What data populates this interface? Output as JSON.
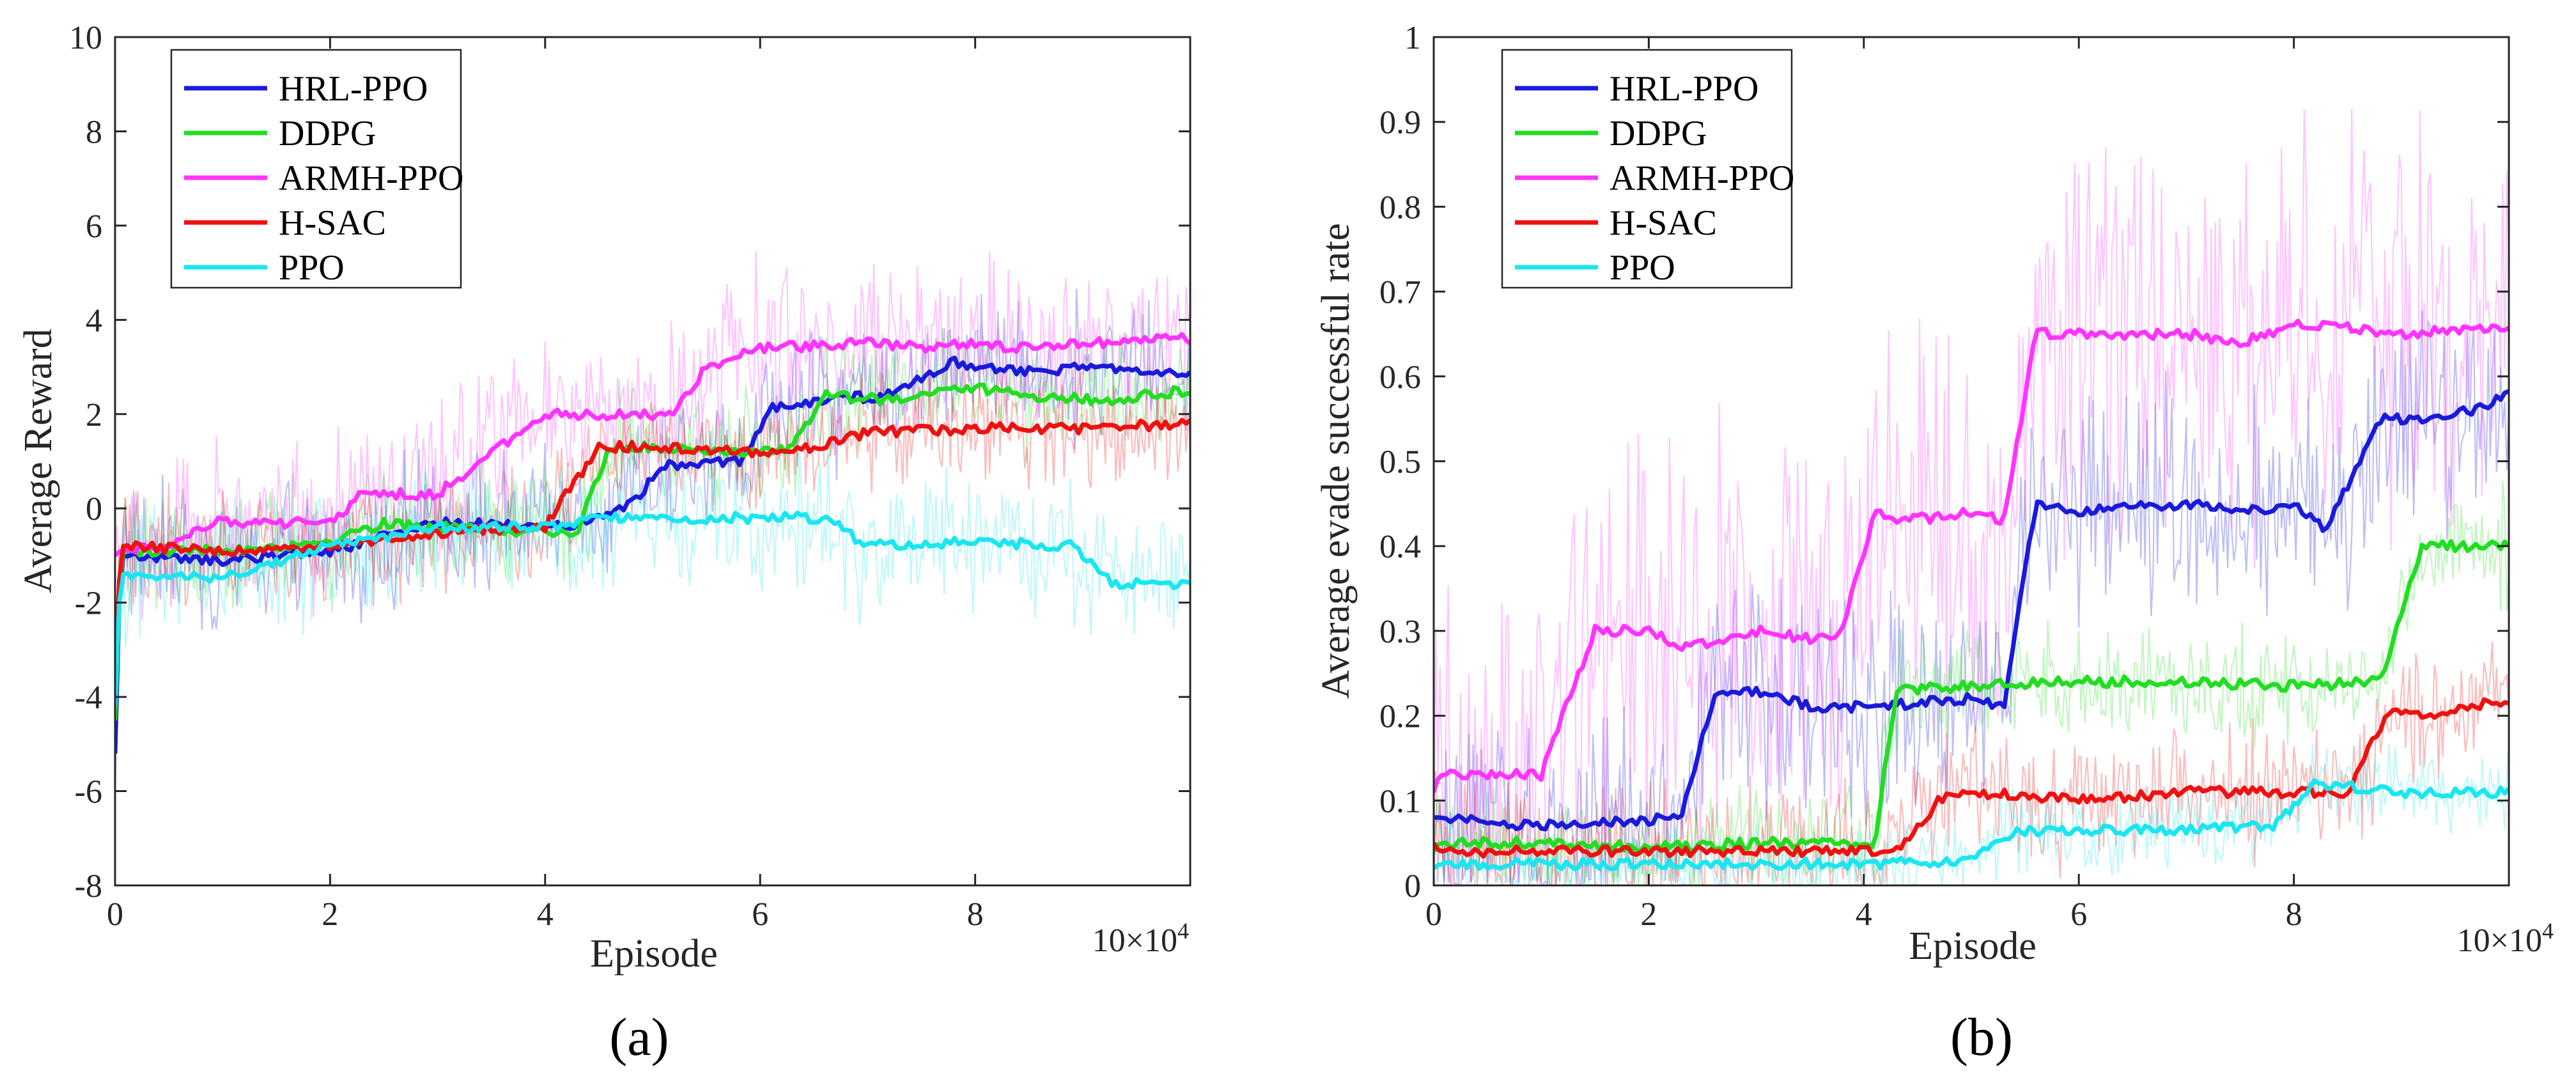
{
  "chart_data": [
    {
      "type": "line",
      "panel_label": "(a)",
      "xlabel": "Episode",
      "ylabel": "Average  Reward",
      "x_multiplier": "10×10",
      "x_multiplier_exp": "4",
      "xlim": [
        0,
        10
      ],
      "ylim": [
        -8,
        10
      ],
      "xticks": [
        "0",
        "2",
        "4",
        "6",
        "8"
      ],
      "yticks": [
        "-8",
        "-6",
        "-4",
        "-2",
        "0",
        "2",
        "4",
        "6",
        "8",
        "10"
      ],
      "legend_position": "top-left",
      "series": [
        {
          "name": "HRL-PPO",
          "color": "#1a1adc",
          "noise": 1.8,
          "x": [
            0,
            0.05,
            1,
            2,
            3,
            4,
            4.3,
            4.8,
            5.1,
            5.8,
            6.1,
            6.6,
            7.2,
            7.8,
            8.5,
            9.2,
            10
          ],
          "y": [
            -5.2,
            -1.0,
            -1.1,
            -0.9,
            -0.3,
            -0.4,
            -0.3,
            0.1,
            0.9,
            1.0,
            2.1,
            2.3,
            2.4,
            3.1,
            2.9,
            3.0,
            2.9
          ]
        },
        {
          "name": "DDPG",
          "color": "#22dd22",
          "noise": 1.6,
          "x": [
            0,
            0.05,
            1,
            2,
            2.5,
            3,
            4,
            4.3,
            4.6,
            5.0,
            6.0,
            6.3,
            6.6,
            7.2,
            7.8,
            8.5,
            9.2,
            10
          ],
          "y": [
            -4.5,
            -0.9,
            -0.9,
            -0.7,
            -0.3,
            -0.4,
            -0.5,
            -0.5,
            1.3,
            1.3,
            1.2,
            1.3,
            2.4,
            2.3,
            2.6,
            2.4,
            2.3,
            2.5
          ]
        },
        {
          "name": "ARMH-PPO",
          "color": "#ff33ff",
          "noise": 2.2,
          "x": [
            0,
            0.05,
            0.5,
            0.9,
            2,
            2.3,
            3,
            3.4,
            4,
            4.5,
            5.2,
            5.5,
            6,
            7,
            7.5,
            8,
            8.5,
            9,
            10
          ],
          "y": [
            -1.0,
            -0.9,
            -0.8,
            -0.3,
            -0.3,
            0.3,
            0.3,
            1.0,
            2.0,
            2.0,
            2.0,
            3.0,
            3.4,
            3.5,
            3.4,
            3.5,
            3.4,
            3.5,
            3.6
          ]
        },
        {
          "name": "H-SAC",
          "color": "#ee1111",
          "noise": 1.5,
          "x": [
            0,
            0.05,
            1,
            2,
            3,
            4,
            4.2,
            4.5,
            5,
            6,
            6.5,
            7,
            8,
            9,
            10
          ],
          "y": [
            -4.0,
            -0.8,
            -0.9,
            -0.8,
            -0.5,
            -0.4,
            0.3,
            1.3,
            1.3,
            1.2,
            1.3,
            1.6,
            1.7,
            1.7,
            1.8
          ]
        },
        {
          "name": "PPO",
          "color": "#19e6f0",
          "noise": 1.9,
          "x": [
            0,
            0.05,
            1,
            2,
            3,
            4,
            4.5,
            5,
            6,
            6.6,
            7,
            8,
            8.9,
            9.3,
            10
          ],
          "y": [
            -4.2,
            -1.4,
            -1.5,
            -0.8,
            -0.4,
            -0.4,
            -0.2,
            -0.2,
            -0.2,
            -0.2,
            -0.8,
            -0.7,
            -0.8,
            -1.6,
            -1.6
          ]
        }
      ]
    },
    {
      "type": "line",
      "panel_label": "(b)",
      "xlabel": "Episode",
      "ylabel": "Average evade successful rate",
      "x_multiplier": "10×10",
      "x_multiplier_exp": "4",
      "xlim": [
        0,
        10
      ],
      "ylim": [
        0,
        1
      ],
      "xticks": [
        "0",
        "2",
        "4",
        "6",
        "8"
      ],
      "yticks": [
        "0",
        "0.1",
        "0.2",
        "0.3",
        "0.4",
        "0.5",
        "0.6",
        "0.7",
        "0.8",
        "0.9",
        "1"
      ],
      "legend_position": "top-left",
      "series": [
        {
          "name": "HRL-PPO",
          "color": "#1a1adc",
          "noise": 0.16,
          "x": [
            0,
            0.05,
            1,
            1.8,
            2.3,
            2.6,
            3,
            3.5,
            4,
            5,
            5.3,
            5.6,
            6,
            7,
            7.5,
            8,
            8.3,
            8.8,
            9.2,
            9.7,
            10
          ],
          "y": [
            0.08,
            0.08,
            0.07,
            0.075,
            0.08,
            0.22,
            0.23,
            0.21,
            0.21,
            0.22,
            0.21,
            0.45,
            0.44,
            0.45,
            0.44,
            0.45,
            0.42,
            0.55,
            0.55,
            0.56,
            0.58
          ]
        },
        {
          "name": "DDPG",
          "color": "#22dd22",
          "noise": 0.08,
          "x": [
            0,
            0.05,
            1,
            2,
            3,
            4,
            4.1,
            4.3,
            5,
            6,
            7,
            8,
            8.8,
            9.2,
            10
          ],
          "y": [
            0.04,
            0.05,
            0.05,
            0.045,
            0.05,
            0.05,
            0.05,
            0.23,
            0.235,
            0.24,
            0.24,
            0.235,
            0.24,
            0.4,
            0.4
          ]
        },
        {
          "name": "ARMH-PPO",
          "color": "#ff33ff",
          "noise": 0.3,
          "x": [
            0,
            0.05,
            1,
            1.2,
            1.5,
            2,
            2.3,
            3,
            3.5,
            3.8,
            4.1,
            4.4,
            5,
            5.3,
            5.6,
            6,
            7,
            7.5,
            8,
            8.3,
            9,
            10
          ],
          "y": [
            0.11,
            0.13,
            0.13,
            0.2,
            0.3,
            0.3,
            0.28,
            0.3,
            0.29,
            0.3,
            0.44,
            0.43,
            0.44,
            0.43,
            0.65,
            0.65,
            0.65,
            0.64,
            0.66,
            0.66,
            0.65,
            0.66
          ]
        },
        {
          "name": "H-SAC",
          "color": "#ee1111",
          "noise": 0.1,
          "x": [
            0,
            0.05,
            1,
            2,
            3,
            4,
            4.3,
            4.7,
            5,
            6,
            7,
            8,
            8.5,
            8.9,
            9.2,
            10
          ],
          "y": [
            0.05,
            0.04,
            0.04,
            0.04,
            0.04,
            0.04,
            0.04,
            0.1,
            0.11,
            0.1,
            0.11,
            0.11,
            0.11,
            0.21,
            0.2,
            0.22
          ]
        },
        {
          "name": "PPO",
          "color": "#19e6f0",
          "noise": 0.06,
          "x": [
            0,
            0.05,
            1,
            2,
            3,
            4,
            5,
            5.4,
            6,
            7,
            7.8,
            8.2,
            9,
            10
          ],
          "y": [
            0.02,
            0.025,
            0.025,
            0.025,
            0.025,
            0.025,
            0.03,
            0.065,
            0.065,
            0.065,
            0.07,
            0.12,
            0.11,
            0.11
          ]
        }
      ]
    }
  ]
}
